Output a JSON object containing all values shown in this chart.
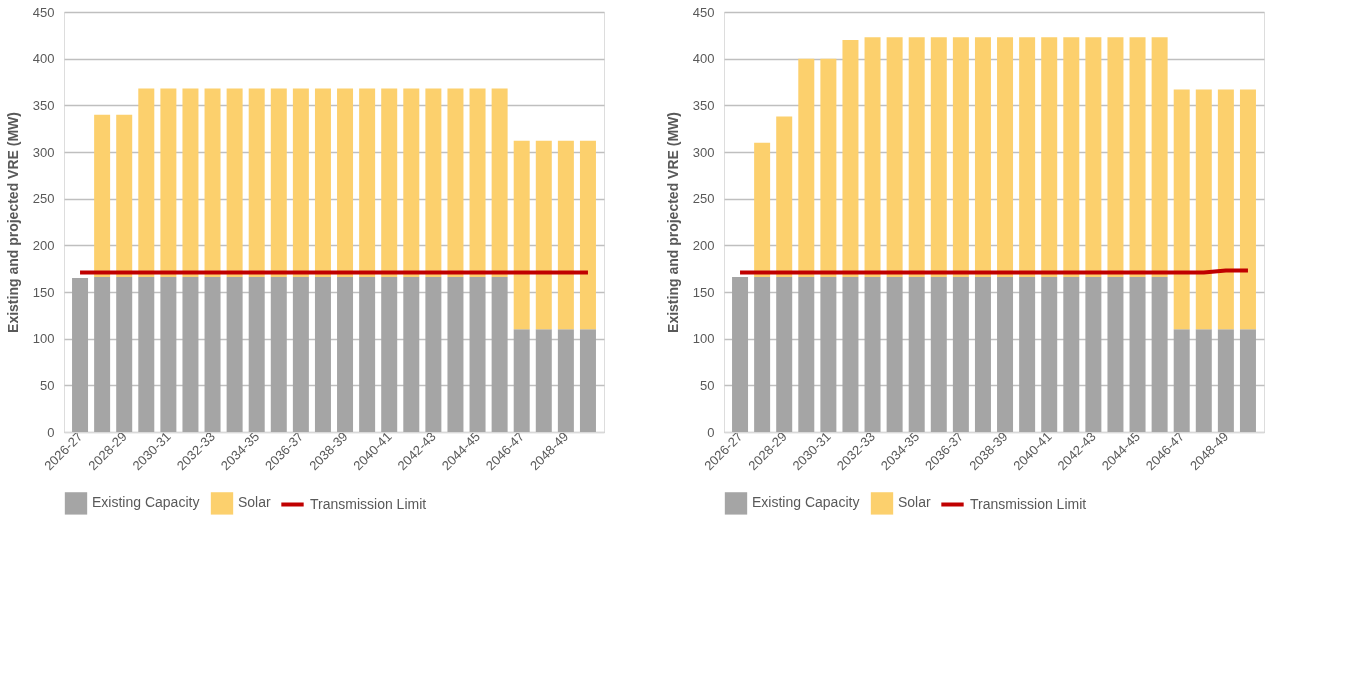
{
  "chart_data": [
    {
      "type": "bar",
      "stacked": true,
      "ylabel": "Existing and projected VRE (MW)",
      "categories": [
        "2026-27",
        null,
        "2028-29",
        null,
        "2030-31",
        null,
        "2032-33",
        null,
        "2034-35",
        null,
        "2036-37",
        null,
        "2038-39",
        null,
        "2040-41",
        null,
        "2042-43",
        null,
        "2044-45",
        null,
        "2046-47",
        null,
        "2048-49",
        null
      ],
      "ylim": [
        0,
        450
      ],
      "yticks": [
        0,
        50,
        100,
        150,
        200,
        250,
        300,
        350,
        400,
        450
      ],
      "grid": "y",
      "legend": "bottom",
      "series": [
        {
          "name": "Existing Capacity",
          "color": "#a5a5a5",
          "values": [
            165,
            166,
            166,
            166,
            166,
            166,
            166,
            166,
            166,
            166,
            166,
            166,
            166,
            166,
            166,
            166,
            166,
            166,
            166,
            166,
            110,
            110,
            110,
            110
          ]
        },
        {
          "name": "Solar",
          "color": "#fcd06d",
          "values": [
            0,
            174,
            174,
            202,
            202,
            202,
            202,
            202,
            202,
            202,
            202,
            202,
            202,
            202,
            202,
            202,
            202,
            202,
            202,
            202,
            202,
            202,
            202,
            202
          ]
        },
        {
          "name": "Transmission Limit",
          "type": "line",
          "color": "#c00000",
          "values": [
            171,
            171,
            171,
            171,
            171,
            171,
            171,
            171,
            171,
            171,
            171,
            171,
            171,
            171,
            171,
            171,
            171,
            171,
            171,
            171,
            171,
            171,
            171,
            171
          ]
        }
      ]
    },
    {
      "type": "bar",
      "stacked": true,
      "ylabel": "Existing and projected VRE (MW)",
      "categories": [
        "2026-27",
        null,
        "2028-29",
        null,
        "2030-31",
        null,
        "2032-33",
        null,
        "2034-35",
        null,
        "2036-37",
        null,
        "2038-39",
        null,
        "2040-41",
        null,
        "2042-43",
        null,
        "2044-45",
        null,
        "2046-47",
        null,
        "2048-49",
        null
      ],
      "ylim": [
        0,
        450
      ],
      "yticks": [
        0,
        50,
        100,
        150,
        200,
        250,
        300,
        350,
        400,
        450
      ],
      "grid": "y",
      "legend": "bottom",
      "series": [
        {
          "name": "Existing Capacity",
          "color": "#a5a5a5",
          "values": [
            166,
            166,
            166,
            166,
            166,
            166,
            166,
            166,
            166,
            166,
            166,
            166,
            166,
            166,
            166,
            166,
            166,
            166,
            166,
            166,
            110,
            110,
            110,
            110
          ]
        },
        {
          "name": "Solar",
          "color": "#fcd06d",
          "values": [
            0,
            144,
            172,
            234,
            234,
            254,
            257,
            257,
            257,
            257,
            257,
            257,
            257,
            257,
            257,
            257,
            257,
            257,
            257,
            257,
            257,
            257,
            257,
            257
          ]
        },
        {
          "name": "Transmission Limit",
          "type": "line",
          "color": "#c00000",
          "values": [
            171,
            171,
            171,
            171,
            171,
            171,
            171,
            171,
            171,
            171,
            171,
            171,
            171,
            171,
            171,
            171,
            171,
            171,
            171,
            171,
            171,
            171,
            173,
            173
          ]
        }
      ]
    }
  ]
}
